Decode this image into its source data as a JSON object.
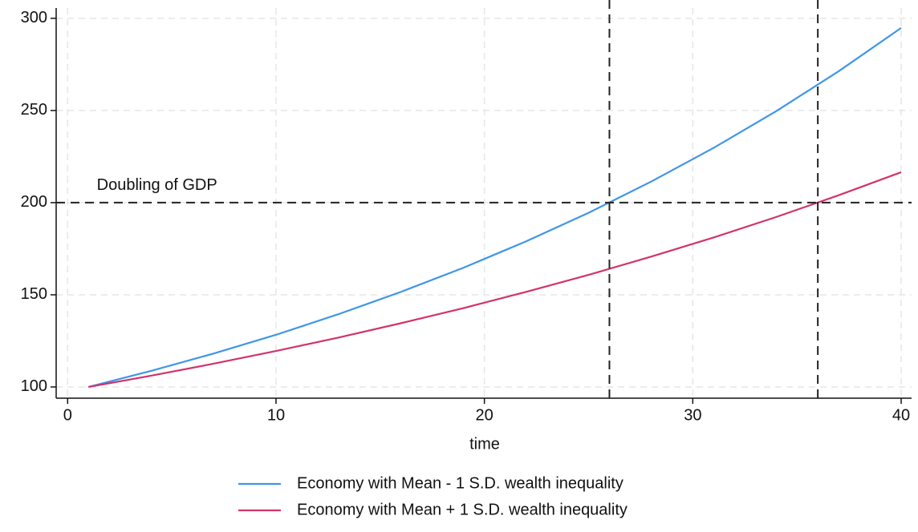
{
  "chart_data": {
    "type": "line",
    "x_label": "time",
    "annotation": "Doubling of GDP",
    "x": [
      1,
      4,
      7,
      10,
      13,
      16,
      19,
      22,
      25,
      28,
      31,
      34,
      37,
      40
    ],
    "series": [
      {
        "name": "Economy with Mean - 1 S.D. wealth inequality",
        "color": "#3f95e8",
        "values": [
          100,
          108.7,
          118.1,
          128.3,
          139.5,
          151.6,
          164.7,
          179.0,
          194.5,
          211.4,
          229.7,
          249.6,
          271.3,
          294.8
        ]
      },
      {
        "name": "Economy with Mean + 1 S.D. wealth inequality",
        "color": "#d1336b",
        "values": [
          100,
          106.1,
          112.6,
          119.5,
          126.8,
          134.6,
          142.8,
          151.6,
          160.8,
          170.7,
          181.1,
          192.2,
          204.0,
          216.5
        ]
      }
    ],
    "hlines": [
      200
    ],
    "vlines": [
      26,
      36
    ],
    "xlim": [
      -0.55,
      40.5
    ],
    "xticks": [
      0,
      10,
      20,
      30,
      40
    ],
    "ylim": [
      93.9,
      305.6
    ],
    "yticks": [
      100,
      150,
      200,
      250,
      300
    ],
    "grid": true,
    "legend": "bottom"
  }
}
